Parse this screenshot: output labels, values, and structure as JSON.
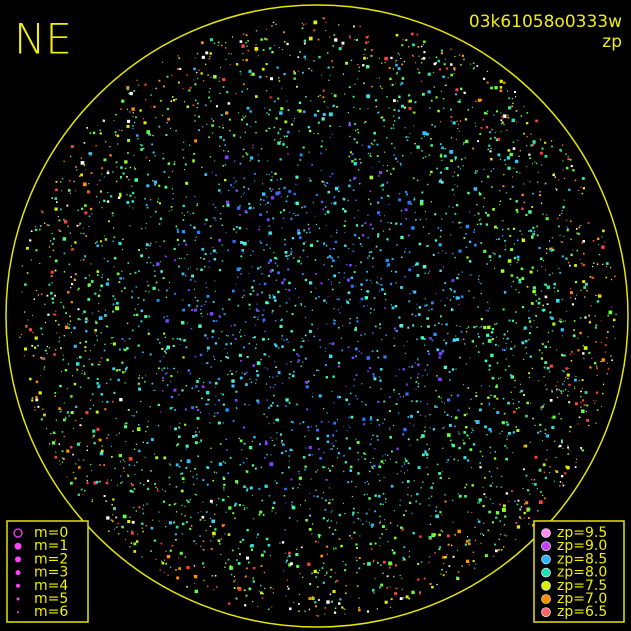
{
  "header": {
    "corner_label": "NE",
    "frame_id": "03k61058o0333w",
    "field": "zp"
  },
  "legend_magnitude": {
    "items": [
      "m=0",
      "m=1",
      "m=2",
      "m=3",
      "m=4",
      "m=5",
      "m=6"
    ]
  },
  "legend_zp": {
    "items": [
      {
        "label": "zp=9.5",
        "color": "#ff8cff"
      },
      {
        "label": "zp=9.0",
        "color": "#c040ff"
      },
      {
        "label": "zp=8.5",
        "color": "#30b0ff"
      },
      {
        "label": "zp=8.0",
        "color": "#20e0b0"
      },
      {
        "label": "zp=7.5",
        "color": "#d8f000"
      },
      {
        "label": "zp=7.0",
        "color": "#ff8a00"
      },
      {
        "label": "zp=6.5",
        "color": "#ff6464"
      }
    ]
  }
}
